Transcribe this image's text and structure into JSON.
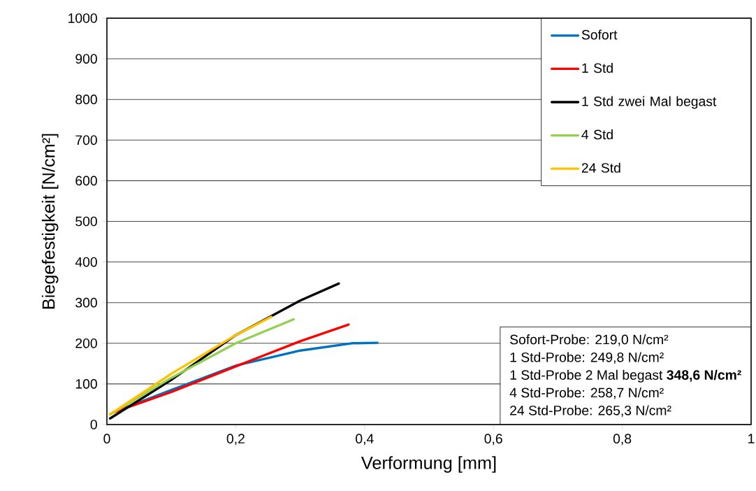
{
  "chart_data": {
    "type": "line",
    "xlabel": "Verformung [mm]",
    "ylabel": "Biegefestigkeit [N/cm²]",
    "xlim": [
      0,
      1
    ],
    "ylim": [
      0,
      1000
    ],
    "xticks": [
      0,
      {
        "value": 0.2,
        "label": "0,2"
      },
      {
        "value": 0.4,
        "label": "0,4"
      },
      {
        "value": 0.6,
        "label": "0,6"
      },
      {
        "value": 0.8,
        "label": "0,8"
      },
      1
    ],
    "yticks": [
      0,
      100,
      200,
      300,
      400,
      500,
      600,
      700,
      800,
      900,
      1000
    ],
    "grid": "y",
    "legend": "top right",
    "marker": "none",
    "line_style": "solid",
    "series": [
      {
        "name": "Sofort",
        "color": "#0070c0",
        "x": [
          0.01,
          0.1,
          0.2,
          0.3,
          0.38,
          0.42
        ],
        "values": [
          30,
          85,
          145,
          182,
          200,
          201
        ]
      },
      {
        "name": "1 Std",
        "color": "#ff0000",
        "x": [
          0.01,
          0.1,
          0.2,
          0.3,
          0.375
        ],
        "values": [
          30,
          80,
          143,
          205,
          246
        ]
      },
      {
        "name": "1 Std zwei Mal begast",
        "color": "#000000",
        "x": [
          0.005,
          0.1,
          0.2,
          0.3,
          0.36
        ],
        "values": [
          15,
          110,
          220,
          305,
          347
        ]
      },
      {
        "name": "4 Std",
        "color": "#92d050",
        "x": [
          0.005,
          0.1,
          0.2,
          0.29
        ],
        "values": [
          25,
          115,
          200,
          259
        ]
      },
      {
        "name": "24 Std",
        "color": "#ffc000",
        "x": [
          0.005,
          0.1,
          0.2,
          0.255
        ],
        "values": [
          25,
          125,
          220,
          265
        ]
      }
    ],
    "annotations": [
      "Sofort-Probe: 219,0 N/cm²",
      "1 Std-Probe: 249,8 N/cm²",
      "1 Std-Probe 2 Mal begast **348,6 N/cm²**",
      "4 Std-Probe: 258,7 N/cm²",
      "24 Std-Probe: 265,3 N/cm²"
    ]
  }
}
